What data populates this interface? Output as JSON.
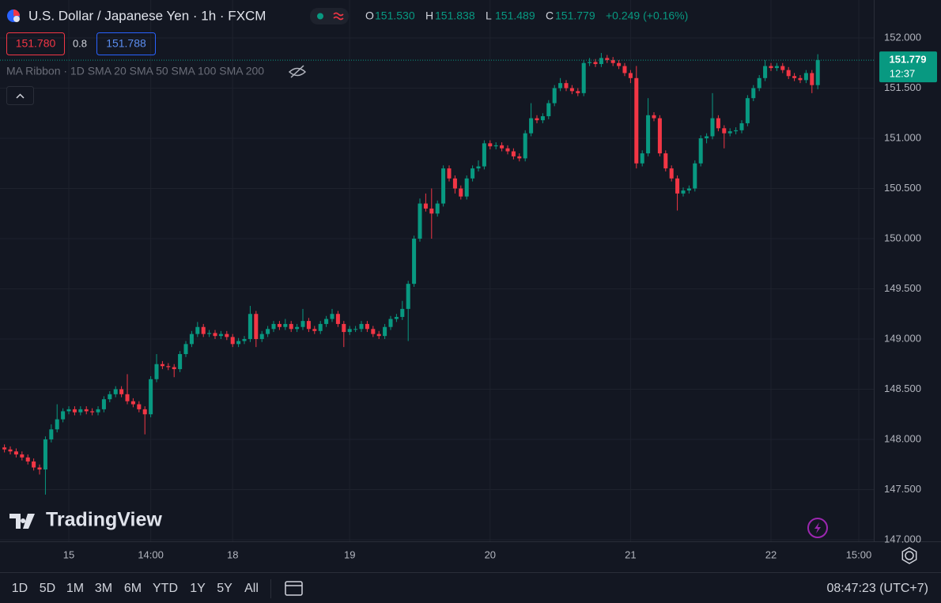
{
  "chart_data": {
    "type": "candlestick",
    "title": "U.S. Dollar / Japanese Yen · 1h · FXCM",
    "up_color": "#089981",
    "down_color": "#f23645",
    "open": [
      147.92,
      147.9,
      147.88,
      147.85,
      147.82,
      147.78,
      147.72,
      147.7,
      148.0,
      148.1,
      148.2,
      148.28,
      148.3,
      148.27,
      148.3,
      148.28,
      148.27,
      148.3,
      148.4,
      148.45,
      148.5,
      148.45,
      148.38,
      148.35,
      148.3,
      148.25,
      148.6,
      148.75,
      148.73,
      148.72,
      148.7,
      148.85,
      148.95,
      149.05,
      149.12,
      149.05,
      149.06,
      149.03,
      149.05,
      149.02,
      148.95,
      148.98,
      149.0,
      149.25,
      149.0,
      149.05,
      149.1,
      149.15,
      149.12,
      149.15,
      149.1,
      149.12,
      149.18,
      149.1,
      149.08,
      149.15,
      149.2,
      149.25,
      149.15,
      149.07,
      149.1,
      149.1,
      149.15,
      149.1,
      149.05,
      149.03,
      149.12,
      149.2,
      149.22,
      149.3,
      149.55,
      150.0,
      150.35,
      150.3,
      150.25,
      150.35,
      150.7,
      150.6,
      150.5,
      150.42,
      150.6,
      150.7,
      150.72,
      150.95,
      150.92,
      150.93,
      150.9,
      150.87,
      150.82,
      150.8,
      151.05,
      151.2,
      151.18,
      151.22,
      151.35,
      151.5,
      151.55,
      151.5,
      151.47,
      151.45,
      151.75,
      151.76,
      151.74,
      151.8,
      151.78,
      151.75,
      151.72,
      151.65,
      151.6,
      150.75,
      150.85,
      151.23,
      151.2,
      150.85,
      150.7,
      150.6,
      150.45,
      150.48,
      150.5,
      150.75,
      151.0,
      151.02,
      151.2,
      151.1,
      151.05,
      151.07,
      151.08,
      151.15,
      151.4,
      151.5,
      151.6,
      151.72,
      151.7,
      151.72,
      151.68,
      151.62,
      151.6,
      151.58,
      151.65,
      151.53
    ],
    "high": [
      147.95,
      147.93,
      147.91,
      147.88,
      147.85,
      147.81,
      147.75,
      148.03,
      148.15,
      148.35,
      148.31,
      148.33,
      148.33,
      148.33,
      148.33,
      148.31,
      148.33,
      148.43,
      148.48,
      148.53,
      148.53,
      148.65,
      148.41,
      148.38,
      148.33,
      148.63,
      148.85,
      148.78,
      148.76,
      148.75,
      148.88,
      148.98,
      149.08,
      149.17,
      149.15,
      149.09,
      149.09,
      149.08,
      149.08,
      149.05,
      149.01,
      149.03,
      149.33,
      149.28,
      149.08,
      149.13,
      149.18,
      149.18,
      149.2,
      149.18,
      149.15,
      149.3,
      149.21,
      149.13,
      149.18,
      149.23,
      149.3,
      149.28,
      149.18,
      149.13,
      149.13,
      149.18,
      149.18,
      149.13,
      149.08,
      149.15,
      149.23,
      149.25,
      149.38,
      149.58,
      150.03,
      150.4,
      150.45,
      150.5,
      150.38,
      150.73,
      150.73,
      150.63,
      150.53,
      150.63,
      150.73,
      150.78,
      150.98,
      150.98,
      150.96,
      150.96,
      150.93,
      150.9,
      150.85,
      151.08,
      151.35,
      151.23,
      151.25,
      151.38,
      151.53,
      151.6,
      151.58,
      151.53,
      151.5,
      151.78,
      151.8,
      151.79,
      151.85,
      151.83,
      151.81,
      151.78,
      151.75,
      151.68,
      151.72,
      150.88,
      151.4,
      151.26,
      151.23,
      150.88,
      150.73,
      150.63,
      150.51,
      150.53,
      150.78,
      151.03,
      151.05,
      151.45,
      151.23,
      151.13,
      151.1,
      151.11,
      151.18,
      151.43,
      151.53,
      151.63,
      151.78,
      151.75,
      151.75,
      151.75,
      151.71,
      151.65,
      151.63,
      151.68,
      151.68,
      151.838
    ],
    "low": [
      147.87,
      147.85,
      147.82,
      147.79,
      147.75,
      147.69,
      147.65,
      147.45,
      147.97,
      148.07,
      148.17,
      148.25,
      148.24,
      148.24,
      148.25,
      148.24,
      148.24,
      148.27,
      148.37,
      148.42,
      148.42,
      148.35,
      148.32,
      148.27,
      148.05,
      148.22,
      148.57,
      148.7,
      148.69,
      148.62,
      148.67,
      148.82,
      148.92,
      149.02,
      149.02,
      149.02,
      149.0,
      149.0,
      148.99,
      148.92,
      148.92,
      148.95,
      148.97,
      148.92,
      148.97,
      149.02,
      149.07,
      149.09,
      149.09,
      149.07,
      149.07,
      149.09,
      149.07,
      149.05,
      149.05,
      149.12,
      149.17,
      149.12,
      148.92,
      149.04,
      149.07,
      149.07,
      149.07,
      149.02,
      149.0,
      149.0,
      149.09,
      149.17,
      149.19,
      148.98,
      149.52,
      149.97,
      150.27,
      150.0,
      150.22,
      150.32,
      150.57,
      150.45,
      150.39,
      150.39,
      150.57,
      150.67,
      150.69,
      150.89,
      150.89,
      150.87,
      150.84,
      150.79,
      150.77,
      150.77,
      151.02,
      151.15,
      151.15,
      151.19,
      151.32,
      151.47,
      151.47,
      151.44,
      151.42,
      151.42,
      151.72,
      151.71,
      151.71,
      151.75,
      151.72,
      151.69,
      151.62,
      151.55,
      150.7,
      150.72,
      150.82,
      151.17,
      150.82,
      150.67,
      150.57,
      150.28,
      150.42,
      150.45,
      150.47,
      150.72,
      150.95,
      150.99,
      151.07,
      150.9,
      151.02,
      151.04,
      151.05,
      151.12,
      151.37,
      151.47,
      151.57,
      151.67,
      151.67,
      151.65,
      151.59,
      151.57,
      151.55,
      151.55,
      151.45,
      151.489
    ],
    "close": [
      147.9,
      147.88,
      147.85,
      147.82,
      147.78,
      147.72,
      147.7,
      148.0,
      148.1,
      148.2,
      148.28,
      148.3,
      148.27,
      148.3,
      148.28,
      148.27,
      148.3,
      148.4,
      148.45,
      148.5,
      148.45,
      148.38,
      148.35,
      148.3,
      148.25,
      148.6,
      148.75,
      148.73,
      148.72,
      148.7,
      148.85,
      148.95,
      149.05,
      149.12,
      149.05,
      149.06,
      149.03,
      149.05,
      149.02,
      148.95,
      148.98,
      149.0,
      149.25,
      149.0,
      149.05,
      149.1,
      149.15,
      149.12,
      149.15,
      149.1,
      149.12,
      149.18,
      149.1,
      149.08,
      149.15,
      149.2,
      149.25,
      149.15,
      149.07,
      149.1,
      149.1,
      149.15,
      149.1,
      149.05,
      149.03,
      149.12,
      149.2,
      149.22,
      149.3,
      149.55,
      150.0,
      150.35,
      150.3,
      150.25,
      150.35,
      150.7,
      150.6,
      150.5,
      150.42,
      150.6,
      150.7,
      150.72,
      150.95,
      150.92,
      150.93,
      150.9,
      150.87,
      150.82,
      150.8,
      151.05,
      151.2,
      151.18,
      151.22,
      151.35,
      151.5,
      151.55,
      151.5,
      151.47,
      151.45,
      151.75,
      151.76,
      151.74,
      151.8,
      151.78,
      151.75,
      151.72,
      151.65,
      151.6,
      150.75,
      150.85,
      151.23,
      151.2,
      150.85,
      150.7,
      150.6,
      150.45,
      150.48,
      150.5,
      150.75,
      151.0,
      151.02,
      151.2,
      151.1,
      151.05,
      151.07,
      151.08,
      151.15,
      151.4,
      151.5,
      151.6,
      151.72,
      151.7,
      151.72,
      151.68,
      151.62,
      151.6,
      151.58,
      151.65,
      151.53,
      151.779
    ],
    "xlim": [
      -0.76,
      148.57
    ],
    "xticks": [
      {
        "value": 11,
        "label": "15"
      },
      {
        "value": 25,
        "label": "14:00"
      },
      {
        "value": 39,
        "label": "18"
      },
      {
        "value": 59,
        "label": "19"
      },
      {
        "value": 83,
        "label": "20"
      },
      {
        "value": 107,
        "label": "21"
      },
      {
        "value": 131,
        "label": "22"
      },
      {
        "value": 146,
        "label": "15:00"
      }
    ],
    "ylim": [
      146.984,
      152.378
    ],
    "yticks": [
      {
        "value": 147,
        "label": "147.000"
      },
      {
        "value": 147.5,
        "label": "147.500"
      },
      {
        "value": 148,
        "label": "148.000"
      },
      {
        "value": 148.5,
        "label": "148.500"
      },
      {
        "value": 149,
        "label": "149.000"
      },
      {
        "value": 149.5,
        "label": "149.500"
      },
      {
        "value": 150,
        "label": "150.000"
      },
      {
        "value": 150.5,
        "label": "150.500"
      },
      {
        "value": 151,
        "label": "151.000"
      },
      {
        "value": 151.5,
        "label": "151.500"
      },
      {
        "value": 152,
        "label": "152.000"
      }
    ],
    "grid": true,
    "last_price_label": "151.779",
    "countdown": "12:37"
  },
  "legend": {
    "o_label": "O",
    "o": "151.530",
    "h_label": "H",
    "h": "151.838",
    "l_label": "L",
    "l": "151.489",
    "c_label": "C",
    "c": "151.779",
    "change": "+0.249 (+0.16%)"
  },
  "trade": {
    "sell": "151.780",
    "spread": "0.8",
    "buy": "151.788"
  },
  "indicator": "MA Ribbon · 1D SMA 20 SMA 50 SMA 100 SMA 200",
  "watermark": "TradingView",
  "ranges": [
    "1D",
    "5D",
    "1M",
    "3M",
    "6M",
    "YTD",
    "1Y",
    "5Y",
    "All"
  ],
  "clock": "08:47:23 (UTC+7)"
}
